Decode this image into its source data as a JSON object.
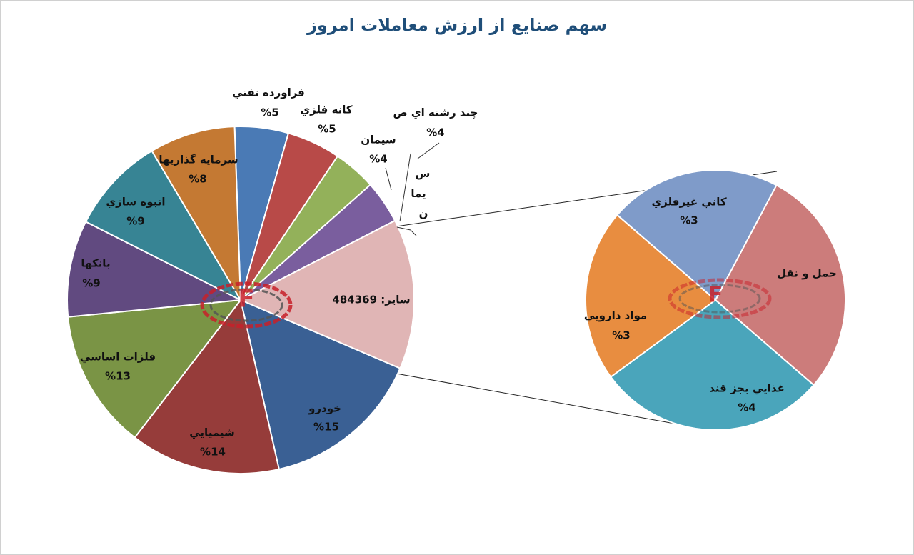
{
  "chart_data": [
    {
      "type": "pie",
      "title": "سهم صنايع از ارزش معاملات امروز",
      "categories": [
        "فراورده نفتي",
        "كانه فلزي",
        "سيمان",
        "چند رشته اي ص",
        "س\nيما\nن",
        "ساير: 484369",
        "خودرو",
        "شيميايي",
        "فلزات اساسي",
        "بانكها",
        "انبوه سازي",
        "سرمايه گذاريها"
      ],
      "values": [
        5,
        5,
        4,
        4,
        0,
        14,
        15,
        14,
        13,
        9,
        9,
        8
      ],
      "value_labels": [
        "%5",
        "%5",
        "%4",
        "%4",
        null,
        null,
        "%15",
        "%14",
        "%13",
        "%9",
        "%9",
        "%8"
      ],
      "colors": [
        "#4a7ab5",
        "#b84a48",
        "#93b15a",
        "#7a5e9e",
        "#6a4f8c",
        "#e0b5b5",
        "#3a6094",
        "#963c3a",
        "#7a9445",
        "#614a80",
        "#378494",
        "#c47933"
      ]
    },
    {
      "type": "pie",
      "categories": [
        "حمل و نقل",
        "غذايي بجز قند",
        "مواد دارويي",
        "كاني غيرفلزي"
      ],
      "values": [
        4,
        4,
        3,
        3
      ],
      "value_labels": [
        null,
        "%4",
        "%3",
        "%3"
      ],
      "colors": [
        "#cc7c7b",
        "#4aa5bb",
        "#e88d40",
        "#7f9bc9"
      ]
    }
  ]
}
